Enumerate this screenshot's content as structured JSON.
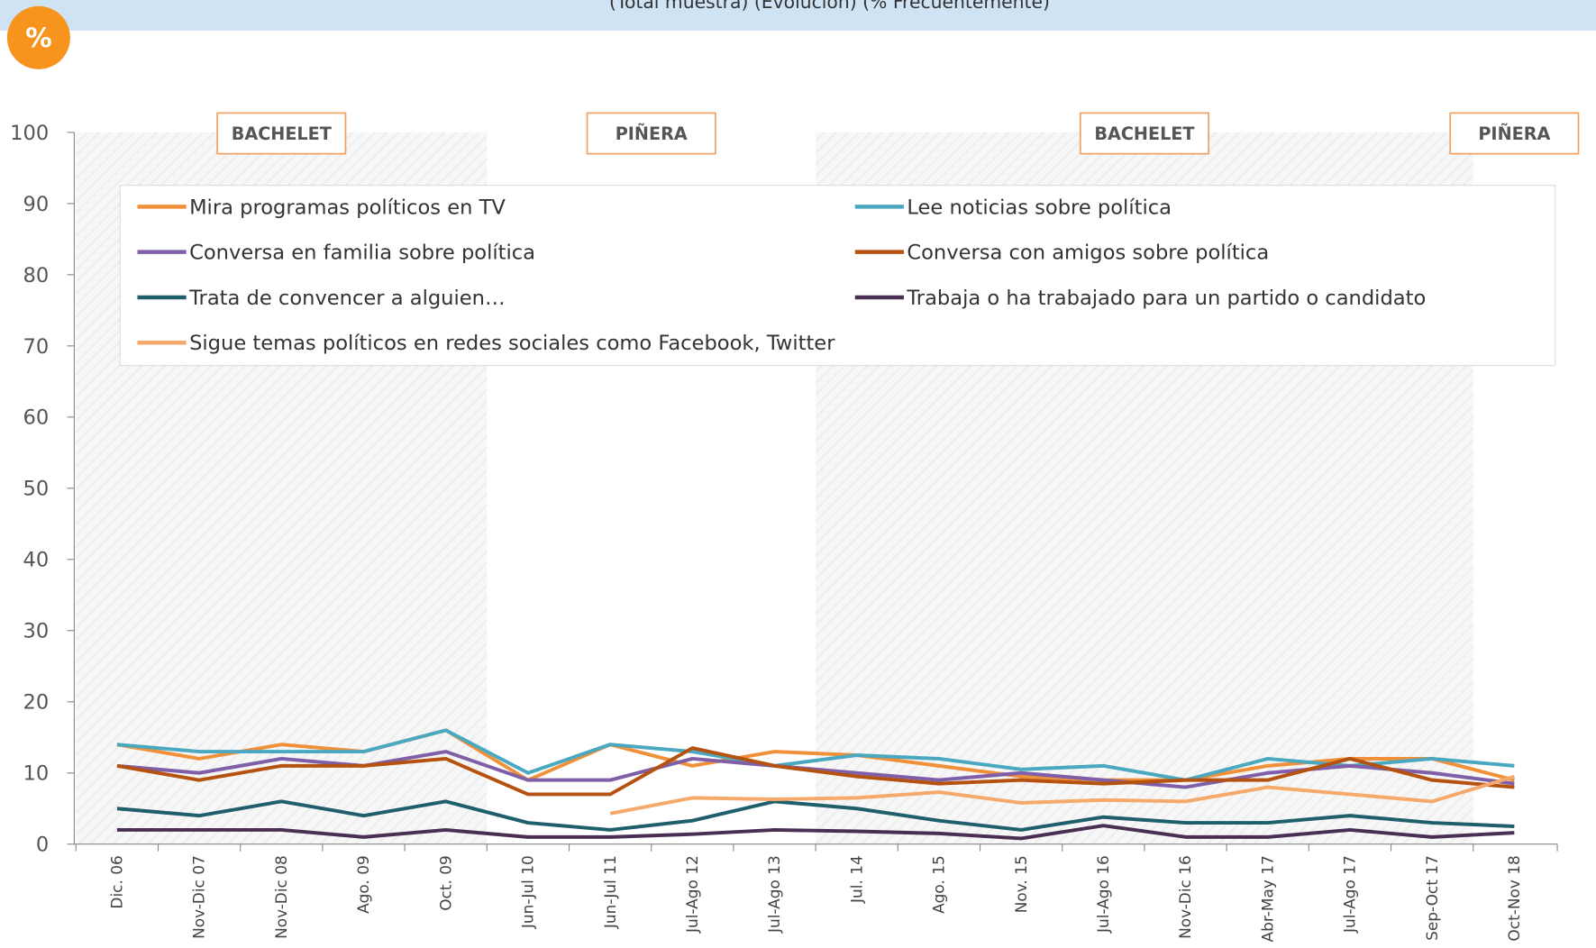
{
  "chart_data": {
    "type": "line",
    "title": "(Total muestra) (Evolución) (% Frecuentemente)",
    "badge": "%",
    "categories": [
      "Dic. 06",
      "Nov-Dic 07",
      "Nov-Dic 08",
      "Ago. 09",
      "Oct. 09",
      "Jun-Jul 10",
      "Jun-Jul 11",
      "Jul-Ago 12",
      "Jul-Ago 13",
      "Jul. 14",
      "Ago. 15",
      "Nov. 15",
      "Jul-Ago 16",
      "Nov-Dic 16",
      "Abr-May 17",
      "Jul-Ago 17",
      "Sep-Oct 17",
      "Oct-Nov 18"
    ],
    "ylim": [
      0,
      100
    ],
    "yticks": [
      0,
      10,
      20,
      30,
      40,
      50,
      60,
      70,
      80,
      90,
      100
    ],
    "periods": [
      {
        "label": "BACHELET",
        "from": "Dic. 06",
        "to": "Oct. 09"
      },
      {
        "label": "PIÑERA",
        "from": "Jun-Jul 10",
        "to": "Jul-Ago 13"
      },
      {
        "label": "BACHELET",
        "from": "Jul. 14",
        "to": "Sep-Oct 17"
      },
      {
        "label": "PIÑERA",
        "from": "Oct-Nov 18",
        "to": "Oct-Nov 18"
      }
    ],
    "series": [
      {
        "name": "Mira programas políticos en TV",
        "color": "#f0913a",
        "values": [
          14,
          12,
          14,
          13,
          16,
          9,
          14,
          11,
          13,
          12.5,
          11,
          9.5,
          9,
          9,
          11,
          12,
          12,
          9
        ]
      },
      {
        "name": "Lee noticias sobre política",
        "color": "#4aa8c0",
        "values": [
          14,
          13,
          13,
          13,
          16,
          10,
          14,
          13,
          11,
          12.5,
          12,
          10.5,
          11,
          9,
          12,
          11,
          12,
          11
        ]
      },
      {
        "name": "Conversa en familia sobre política",
        "color": "#7f5fa8",
        "values": [
          11,
          10,
          12,
          11,
          13,
          9,
          9,
          12,
          11,
          10,
          9,
          10,
          9,
          8,
          10,
          11,
          10,
          8.5
        ]
      },
      {
        "name": "Conversa con amigos sobre política",
        "color": "#b5520f",
        "values": [
          11,
          9,
          11,
          11,
          12,
          7,
          7,
          13.5,
          11,
          9.5,
          8.5,
          9,
          8.5,
          9,
          9,
          12,
          9,
          8
        ]
      },
      {
        "name": "Trata de convencer a alguien…",
        "color": "#1f5f6b",
        "values": [
          5,
          4,
          6,
          4,
          6,
          3,
          2,
          3.3,
          6,
          5,
          3.3,
          2,
          3.8,
          3,
          3,
          4,
          3,
          2.5
        ]
      },
      {
        "name": "Trabaja o ha trabajado para un partido o candidato",
        "color": "#4a2f55",
        "values": [
          2,
          2,
          2,
          1,
          2,
          1,
          1,
          1.4,
          2,
          1.8,
          1.5,
          0.8,
          2.6,
          1,
          1,
          2,
          1,
          1.6
        ]
      },
      {
        "name": "Sigue temas políticos en redes sociales como Facebook, Twitter",
        "color": "#f5a96a",
        "values": [
          null,
          null,
          null,
          null,
          null,
          null,
          4.3,
          6.5,
          6.3,
          6.5,
          7.3,
          5.8,
          6.2,
          6,
          8,
          7,
          6,
          9.5
        ]
      }
    ]
  }
}
